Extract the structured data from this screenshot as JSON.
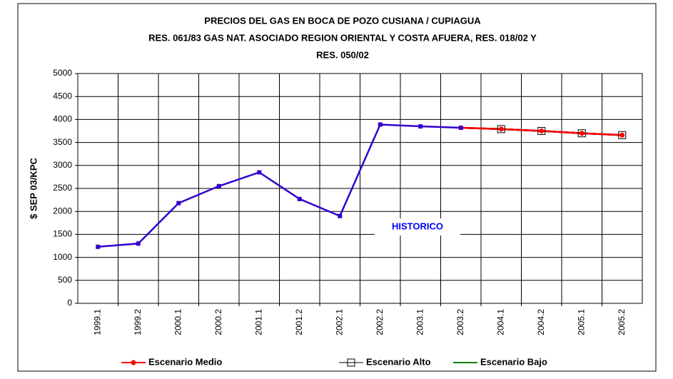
{
  "chart_data": {
    "type": "line",
    "title": [
      "PRECIOS DEL GAS EN BOCA DE POZO CUSIANA / CUPIAGUA",
      "RES. 061/83 GAS NAT. ASOCIADO REGION ORIENTAL Y COSTA AFUERA, RES. 018/02 Y",
      "RES. 050/02"
    ],
    "y_label": "$ SEP 03/KPC",
    "annotation": "HISTORICO",
    "categories": [
      "1999.1",
      "1999.2",
      "2000.1",
      "2000.2",
      "2001.1",
      "2001.2",
      "2002.1",
      "2002.2",
      "2003.1",
      "2003.2",
      "2004.1",
      "2004.2",
      "2005.1",
      "2005.2"
    ],
    "series": [
      {
        "color": "#3300cc",
        "marker": "square",
        "values": [
          1230,
          1300,
          2180,
          2550,
          2850,
          2270,
          1900,
          3890,
          3850,
          3820,
          null,
          null,
          null,
          null
        ]
      },
      {
        "name": "Escenario Bajo",
        "color": "#008000",
        "marker": "none",
        "values": [
          null,
          null,
          null,
          null,
          null,
          null,
          null,
          null,
          null,
          3820,
          3790,
          3750,
          3700,
          3660
        ]
      },
      {
        "name": "Escenario Alto",
        "color": "#000000",
        "marker": "open-square",
        "values": [
          null,
          null,
          null,
          null,
          null,
          null,
          null,
          null,
          null,
          3820,
          3790,
          3750,
          3700,
          3660
        ]
      },
      {
        "name": "Escenario Medio",
        "color": "#ff0000",
        "marker": "circle",
        "values": [
          null,
          null,
          null,
          null,
          null,
          null,
          null,
          null,
          null,
          3820,
          3790,
          3750,
          3700,
          3660
        ]
      }
    ],
    "ylim": [
      0,
      5000
    ],
    "yticks": [
      0,
      500,
      1000,
      1500,
      2000,
      2500,
      3000,
      3500,
      4000,
      4500,
      5000
    ],
    "grid": true,
    "legend": "bottom"
  }
}
